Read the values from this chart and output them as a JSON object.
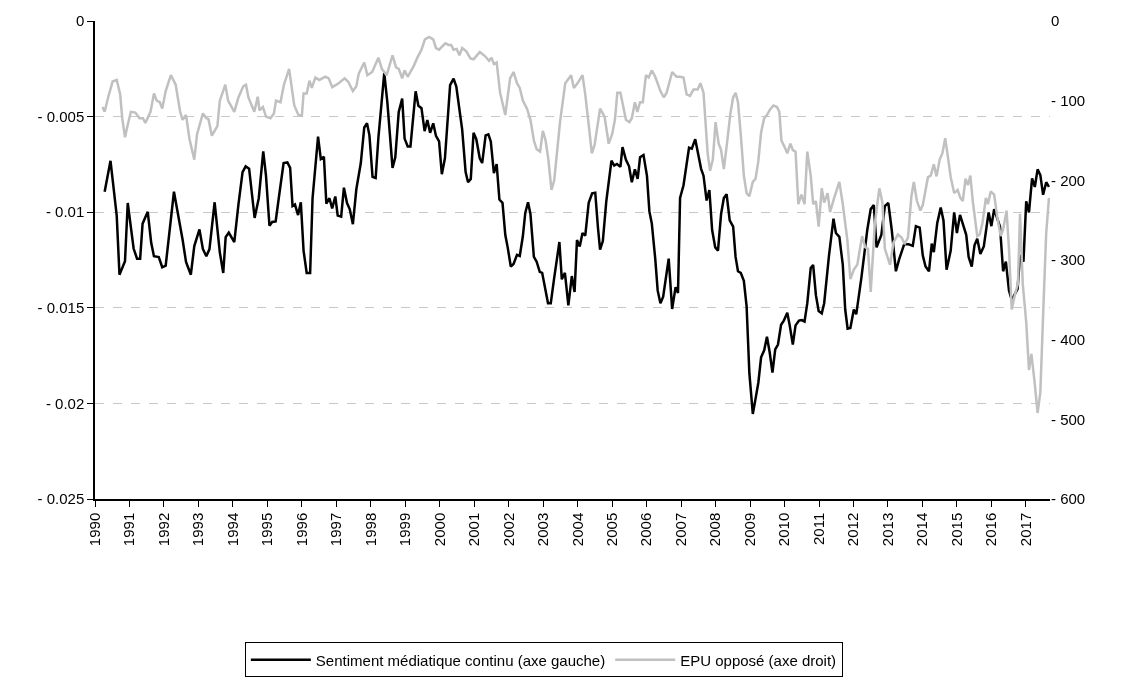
{
  "chart_data": {
    "type": "line",
    "xlim": [
      1990,
      2017.7
    ],
    "xticks": [
      1990,
      1991,
      1992,
      1993,
      1994,
      1995,
      1996,
      1997,
      1998,
      1999,
      2000,
      2001,
      2002,
      2003,
      2004,
      2005,
      2006,
      2007,
      2008,
      2009,
      2010,
      2011,
      2012,
      2013,
      2014,
      2015,
      2016,
      2017
    ],
    "ylim": [
      -0.025,
      0
    ],
    "yticks": [
      0,
      {
        "value": -0.005,
        "label": "- 0.005"
      },
      {
        "value": -0.01,
        "label": "- 0.01"
      },
      {
        "value": -0.015,
        "label": "- 0.015"
      },
      {
        "value": -0.02,
        "label": "- 0.02"
      },
      {
        "value": -0.025,
        "label": "- 0.025"
      }
    ],
    "y2lim": [
      -600,
      0
    ],
    "y2ticks": [
      0,
      {
        "value": -100,
        "label": "- 100"
      },
      {
        "value": -200,
        "label": "- 200"
      },
      {
        "value": -300,
        "label": "- 300"
      },
      {
        "value": -400,
        "label": "- 400"
      },
      {
        "value": -500,
        "label": "- 500"
      },
      {
        "value": -600,
        "label": "- 600"
      }
    ],
    "grid": "y",
    "legend": "bottom",
    "line_style": "solid",
    "marker": "none",
    "series": [
      {
        "name": "Sentiment médiatique continu (axe gauche)",
        "color": "#000000",
        "x": [
          1990.28,
          1990.45,
          1990.63,
          1990.71,
          1990.87,
          1990.95,
          1991.12,
          1991.22,
          1991.31,
          1991.38,
          1991.53,
          1991.63,
          1991.71,
          1991.85,
          1991.95,
          1992.05,
          1992.29,
          1992.54,
          1992.64,
          1992.78,
          1992.88,
          1993.03,
          1993.13,
          1993.23,
          1993.32,
          1993.47,
          1993.62,
          1993.72,
          1993.79,
          1993.88,
          1994.04,
          1994.16,
          1994.28,
          1994.37,
          1994.47,
          1994.63,
          1994.75,
          1994.88,
          1994.96,
          1995.06,
          1995.14,
          1995.24,
          1995.33,
          1995.47,
          1995.58,
          1995.66,
          1995.73,
          1995.8,
          1995.89,
          1995.97,
          1996.05,
          1996.14,
          1996.24,
          1996.31,
          1996.47,
          1996.55,
          1996.64,
          1996.71,
          1996.8,
          1996.88,
          1996.97,
          1997.04,
          1997.14,
          1997.22,
          1997.31,
          1997.39,
          1997.48,
          1997.58,
          1997.71,
          1997.81,
          1997.89,
          1997.96,
          1998.05,
          1998.14,
          1998.22,
          1998.39,
          1998.48,
          1998.63,
          1998.71,
          1998.81,
          1998.91,
          1998.98,
          1999.07,
          1999.15,
          1999.3,
          1999.38,
          1999.47,
          1999.56,
          1999.64,
          1999.72,
          1999.81,
          1999.89,
          1999.98,
          2000.06,
          2000.15,
          2000.3,
          2000.4,
          2000.48,
          2000.65,
          2000.75,
          2000.82,
          2000.9,
          2000.98,
          2001.06,
          2001.16,
          2001.23,
          2001.33,
          2001.41,
          2001.48,
          2001.57,
          2001.65,
          2001.73,
          2001.82,
          2001.9,
          2001.97,
          2002.06,
          2002.14,
          2002.24,
          2002.32,
          2002.41,
          2002.48,
          2002.56,
          2002.63,
          2002.73,
          2002.81,
          2002.9,
          2002.97,
          2003.14,
          2003.22,
          2003.32,
          2003.47,
          2003.54,
          2003.63,
          2003.73,
          2003.83,
          2003.91,
          2003.98,
          2004.06,
          2004.14,
          2004.22,
          2004.32,
          2004.42,
          2004.51,
          2004.59,
          2004.65,
          2004.73,
          2004.83,
          2004.98,
          2005.06,
          2005.14,
          2005.24,
          2005.3,
          2005.4,
          2005.49,
          2005.57,
          2005.66,
          2005.74,
          2005.81,
          2005.91,
          2006.01,
          2006.08,
          2006.15,
          2006.25,
          2006.32,
          2006.4,
          2006.48,
          2006.64,
          2006.74,
          2006.84,
          2006.91,
          2006.97,
          2007.07,
          2007.23,
          2007.31,
          2007.41,
          2007.58,
          2007.65,
          2007.74,
          2007.82,
          2007.9,
          2007.99,
          2008.07,
          2008.16,
          2008.24,
          2008.32,
          2008.41,
          2008.51,
          2008.58,
          2008.65,
          2008.73,
          2008.82,
          2008.9,
          2008.98,
          2009.08,
          2009.16,
          2009.24,
          2009.32,
          2009.41,
          2009.49,
          2009.57,
          2009.65,
          2009.73,
          2009.81,
          2009.9,
          2009.98,
          2010.08,
          2010.15,
          2010.24,
          2010.32,
          2010.42,
          2010.5,
          2010.58,
          2010.66,
          2010.76,
          2010.83,
          2010.91,
          2010.99,
          2011.08,
          2011.15,
          2011.29,
          2011.42,
          2011.49,
          2011.59,
          2011.69,
          2011.76,
          2011.83,
          2011.91,
          2012.01,
          2012.08,
          2012.23,
          2012.4,
          2012.5,
          2012.59,
          2012.67,
          2012.81,
          2012.91,
          2013.01,
          2013.11,
          2013.23,
          2013.33,
          2013.47,
          2013.6,
          2013.72,
          2013.81,
          2013.92,
          2014.01,
          2014.09,
          2014.19,
          2014.27,
          2014.33,
          2014.43,
          2014.53,
          2014.61,
          2014.7,
          2014.82,
          2014.92,
          2015,
          2015.09,
          2015.27,
          2015.34,
          2015.43,
          2015.51,
          2015.59,
          2015.68,
          2015.78,
          2015.92,
          2016,
          2016.08,
          2016.25,
          2016.34,
          2016.42,
          2016.51,
          2016.59,
          2016.76,
          2016.83,
          2016.93,
          2017.01,
          2017.09,
          2017.18,
          2017.26,
          2017.34,
          2017.42,
          2017.5,
          2017.59,
          2017.67
        ],
        "values": [
          -0.00893,
          -0.00731,
          -0.01018,
          -0.01327,
          -0.01257,
          -0.00952,
          -0.0119,
          -0.01243,
          -0.01243,
          -0.0106,
          -0.00998,
          -0.0116,
          -0.0123,
          -0.01235,
          -0.01288,
          -0.0128,
          -0.00893,
          -0.01143,
          -0.0126,
          -0.01327,
          -0.01177,
          -0.0109,
          -0.01193,
          -0.0123,
          -0.01193,
          -0.00948,
          -0.0121,
          -0.01318,
          -0.0113,
          -0.01107,
          -0.01157,
          -0.0096,
          -0.0079,
          -0.0076,
          -0.00772,
          -0.0103,
          -0.00927,
          -0.00682,
          -0.0081,
          -0.01071,
          -0.01051,
          -0.01048,
          -0.00927,
          -0.00743,
          -0.0074,
          -0.00768,
          -0.00968,
          -0.0096,
          -0.01015,
          -0.00948,
          -0.01202,
          -0.01318,
          -0.01318,
          -0.00927,
          -0.00605,
          -0.00722,
          -0.0071,
          -0.00955,
          -0.00927,
          -0.0098,
          -0.00918,
          -0.01018,
          -0.01023,
          -0.00872,
          -0.00952,
          -0.00985,
          -0.01063,
          -0.0088,
          -0.00743,
          -0.00557,
          -0.00535,
          -0.00598,
          -0.00815,
          -0.00821,
          -0.0061,
          -0.00273,
          -0.00426,
          -0.00768,
          -0.00713,
          -0.00476,
          -0.00406,
          -0.00615,
          -0.00656,
          -0.00656,
          -0.00368,
          -0.00443,
          -0.00456,
          -0.00576,
          -0.00518,
          -0.00585,
          -0.00535,
          -0.00601,
          -0.0063,
          -0.00801,
          -0.00718,
          -0.00335,
          -0.00301,
          -0.00343,
          -0.00568,
          -0.0079,
          -0.00843,
          -0.00826,
          -0.00585,
          -0.00618,
          -0.00718,
          -0.00743,
          -0.00598,
          -0.00593,
          -0.0063,
          -0.00796,
          -0.00748,
          -0.00934,
          -0.00951,
          -0.01118,
          -0.01184,
          -0.01284,
          -0.01271,
          -0.01223,
          -0.01229,
          -0.01126,
          -0.01004,
          -0.00948,
          -0.01009,
          -0.01234,
          -0.01259,
          -0.01312,
          -0.01317,
          -0.01476,
          -0.01476,
          -0.01342,
          -0.01156,
          -0.01351,
          -0.01317,
          -0.01487,
          -0.01334,
          -0.01417,
          -0.01146,
          -0.01179,
          -0.01109,
          -0.01123,
          -0.00951,
          -0.00901,
          -0.00898,
          -0.01084,
          -0.01196,
          -0.01151,
          -0.00943,
          -0.0073,
          -0.00756,
          -0.00748,
          -0.00763,
          -0.0066,
          -0.00726,
          -0.0076,
          -0.00843,
          -0.00776,
          -0.00826,
          -0.00713,
          -0.00701,
          -0.0081,
          -0.00996,
          -0.01059,
          -0.01243,
          -0.01409,
          -0.01476,
          -0.01442,
          -0.01243,
          -0.01506,
          -0.01392,
          -0.01422,
          -0.00926,
          -0.00859,
          -0.00663,
          -0.00668,
          -0.00618,
          -0.00773,
          -0.00809,
          -0.00939,
          -0.00884,
          -0.01093,
          -0.01184,
          -0.01201,
          -0.01009,
          -0.00926,
          -0.00906,
          -0.01043,
          -0.01076,
          -0.01234,
          -0.01309,
          -0.01317,
          -0.01359,
          -0.01492,
          -0.01842,
          -0.02055,
          -0.01975,
          -0.01892,
          -0.01759,
          -0.01722,
          -0.01651,
          -0.01734,
          -0.01839,
          -0.01717,
          -0.01692,
          -0.01589,
          -0.01567,
          -0.01526,
          -0.01592,
          -0.01692,
          -0.01592,
          -0.01567,
          -0.01564,
          -0.01572,
          -0.01476,
          -0.01292,
          -0.01276,
          -0.01434,
          -0.01517,
          -0.01529,
          -0.01476,
          -0.01226,
          -0.01034,
          -0.01109,
          -0.01129,
          -0.01276,
          -0.01509,
          -0.01609,
          -0.01606,
          -0.01509,
          -0.01534,
          -0.01342,
          -0.01093,
          -0.00984,
          -0.00963,
          -0.01184,
          -0.01118,
          -0.00968,
          -0.00951,
          -0.01093,
          -0.01309,
          -0.01243,
          -0.01168,
          -0.01168,
          -0.01176,
          -0.01073,
          -0.01081,
          -0.01226,
          -0.01284,
          -0.01309,
          -0.01164,
          -0.01209,
          -0.01056,
          -0.00976,
          -0.01043,
          -0.01301,
          -0.01201,
          -0.01001,
          -0.01109,
          -0.01014,
          -0.01118,
          -0.01234,
          -0.01284,
          -0.01173,
          -0.01139,
          -0.01218,
          -0.01179,
          -0.01001,
          -0.01073,
          -0.00984,
          -0.01076,
          -0.01309,
          -0.01259,
          -0.01409,
          -0.01459,
          -0.01401,
          -0.01226,
          -0.01259,
          -0.00943,
          -0.01001,
          -0.00823,
          -0.00868,
          -0.00776,
          -0.00806,
          -0.00909,
          -0.00843,
          -0.00868
        ]
      },
      {
        "name": "EPU opposé (axe droit)",
        "color": "#c0c0c0",
        "axis": "y2",
        "x": [
          1990.22,
          1990.28,
          1990.38,
          1990.51,
          1990.63,
          1990.73,
          1990.79,
          1990.87,
          1990.94,
          1991.04,
          1991.17,
          1991.29,
          1991.39,
          1991.46,
          1991.61,
          1991.71,
          1991.79,
          1991.88,
          1991.95,
          1992.05,
          1992.2,
          1992.34,
          1992.47,
          1992.54,
          1992.64,
          1992.74,
          1992.88,
          1992.96,
          1993.13,
          1993.23,
          1993.29,
          1993.39,
          1993.55,
          1993.62,
          1993.78,
          1993.86,
          1994.04,
          1994.16,
          1994.3,
          1994.38,
          1994.45,
          1994.62,
          1994.72,
          1994.77,
          1994.87,
          1994.96,
          1995.09,
          1995.19,
          1995.25,
          1995.38,
          1995.48,
          1995.63,
          1995.78,
          1995.9,
          1996,
          1996.05,
          1996.14,
          1996.22,
          1996.29,
          1996.39,
          1996.51,
          1996.68,
          1996.78,
          1996.88,
          1997.04,
          1997.24,
          1997.34,
          1997.48,
          1997.58,
          1997.65,
          1997.81,
          1997.9,
          1998.04,
          1998.22,
          1998.32,
          1998.46,
          1998.63,
          1998.73,
          1998.81,
          1998.91,
          1998.98,
          1999.07,
          1999.25,
          1999.35,
          1999.47,
          1999.57,
          1999.69,
          1999.81,
          1999.89,
          1999.98,
          2000.16,
          2000.26,
          2000.33,
          2000.4,
          2000.49,
          2000.57,
          2000.65,
          2000.77,
          2000.89,
          2000.98,
          2001.16,
          2001.31,
          2001.43,
          2001.5,
          2001.57,
          2001.65,
          2001.75,
          2001.9,
          2002.04,
          2002.14,
          2002.24,
          2002.32,
          2002.41,
          2002.53,
          2002.63,
          2002.73,
          2002.81,
          2002.91,
          2002.99,
          2003.07,
          2003.15,
          2003.24,
          2003.32,
          2003.49,
          2003.64,
          2003.81,
          2003.89,
          2004,
          2004.14,
          2004.22,
          2004.32,
          2004.41,
          2004.49,
          2004.65,
          2004.78,
          2004.9,
          2005,
          2005.08,
          2005.15,
          2005.24,
          2005.4,
          2005.5,
          2005.57,
          2005.66,
          2005.73,
          2005.81,
          2005.89,
          2005.98,
          2006.06,
          2006.15,
          2006.25,
          2006.4,
          2006.5,
          2006.58,
          2006.74,
          2006.87,
          2006.97,
          2007.07,
          2007.16,
          2007.26,
          2007.36,
          2007.48,
          2007.56,
          2007.65,
          2007.77,
          2007.84,
          2007.92,
          2008,
          2008.09,
          2008.16,
          2008.24,
          2008.33,
          2008.43,
          2008.51,
          2008.58,
          2008.65,
          2008.73,
          2008.82,
          2008.9,
          2008.98,
          2009.08,
          2009.16,
          2009.24,
          2009.32,
          2009.41,
          2009.49,
          2009.58,
          2009.68,
          2009.78,
          2009.85,
          2009.91,
          2010,
          2010.08,
          2010.17,
          2010.24,
          2010.32,
          2010.4,
          2010.49,
          2010.58,
          2010.66,
          2010.76,
          2010.83,
          2010.91,
          2010.99,
          2011.08,
          2011.15,
          2011.25,
          2011.32,
          2011.44,
          2011.59,
          2011.69,
          2011.82,
          2011.91,
          2012.01,
          2012.11,
          2012.25,
          2012.34,
          2012.42,
          2012.5,
          2012.62,
          2012.75,
          2012.84,
          2012.91,
          2013.06,
          2013.16,
          2013.29,
          2013.4,
          2013.48,
          2013.58,
          2013.68,
          2013.75,
          2013.84,
          2013.94,
          2014.01,
          2014.16,
          2014.24,
          2014.33,
          2014.41,
          2014.5,
          2014.58,
          2014.66,
          2014.75,
          2014.82,
          2014.92,
          2015.02,
          2015.1,
          2015.17,
          2015.25,
          2015.32,
          2015.39,
          2015.46,
          2015.59,
          2015.66,
          2015.74,
          2015.84,
          2015.9,
          2015.98,
          2016.08,
          2016.17,
          2016.27,
          2016.34,
          2016.44,
          2016.51,
          2016.59,
          2016.69,
          2016.77,
          2016.83,
          2016.91,
          2017.01,
          2017.09,
          2017.16,
          2017.25,
          2017.34,
          2017.42,
          2017.52,
          2017.59,
          2017.67
        ],
        "values": [
          -108,
          -114,
          -96,
          -76,
          -74,
          -92,
          -122,
          -146,
          -132,
          -114,
          -115,
          -122,
          -122,
          -128,
          -114,
          -91,
          -100,
          -102,
          -110,
          -88,
          -68,
          -80,
          -114,
          -124,
          -118,
          -148,
          -174,
          -142,
          -116,
          -122,
          -123,
          -144,
          -132,
          -100,
          -80,
          -100,
          -114,
          -96,
          -82,
          -80,
          -96,
          -114,
          -95,
          -112,
          -108,
          -120,
          -122,
          -116,
          -100,
          -102,
          -80,
          -60,
          -106,
          -118,
          -119,
          -91,
          -91,
          -75,
          -84,
          -71,
          -74,
          -70,
          -72,
          -83,
          -79,
          -72,
          -76,
          -88,
          -82,
          -66,
          -52,
          -68,
          -64,
          -46,
          -60,
          -68,
          -43,
          -58,
          -60,
          -72,
          -62,
          -70,
          -56,
          -46,
          -36,
          -23,
          -20,
          -23,
          -34,
          -36,
          -28,
          -30,
          -30,
          -36,
          -35,
          -43,
          -34,
          -38,
          -47,
          -48,
          -39,
          -44,
          -50,
          -46,
          -54,
          -52,
          -90,
          -118,
          -72,
          -64,
          -78,
          -84,
          -100,
          -110,
          -124,
          -150,
          -161,
          -164,
          -138,
          -150,
          -174,
          -212,
          -200,
          -126,
          -78,
          -68,
          -84,
          -78,
          -68,
          -92,
          -130,
          -166,
          -156,
          -110,
          -120,
          -154,
          -142,
          -124,
          -90,
          -90,
          -124,
          -127,
          -122,
          -102,
          -114,
          -102,
          -102,
          -68,
          -71,
          -62,
          -70,
          -88,
          -96,
          -90,
          -64,
          -70,
          -70,
          -71,
          -92,
          -94,
          -86,
          -86,
          -78,
          -90,
          -166,
          -188,
          -174,
          -127,
          -154,
          -162,
          -186,
          -154,
          -116,
          -96,
          -90,
          -102,
          -142,
          -194,
          -216,
          -220,
          -202,
          -198,
          -176,
          -140,
          -122,
          -118,
          -111,
          -106,
          -108,
          -114,
          -150,
          -158,
          -166,
          -154,
          -162,
          -164,
          -230,
          -218,
          -230,
          -164,
          -194,
          -230,
          -226,
          -258,
          -210,
          -228,
          -216,
          -240,
          -222,
          -202,
          -230,
          -274,
          -324,
          -312,
          -306,
          -270,
          -284,
          -286,
          -340,
          -254,
          -210,
          -228,
          -286,
          -306,
          -278,
          -268,
          -272,
          -280,
          -272,
          -220,
          -202,
          -226,
          -238,
          -231,
          -196,
          -194,
          -180,
          -195,
          -174,
          -166,
          -147,
          -174,
          -196,
          -216,
          -212,
          -222,
          -226,
          -198,
          -206,
          -194,
          -226,
          -270,
          -268,
          -254,
          -222,
          -230,
          -214,
          -218,
          -246,
          -270,
          -262,
          -238,
          -286,
          -362,
          -342,
          -330,
          -242,
          -330,
          -378,
          -438,
          -418,
          -452,
          -492,
          -466,
          -346,
          -266,
          -222
        ]
      }
    ]
  }
}
